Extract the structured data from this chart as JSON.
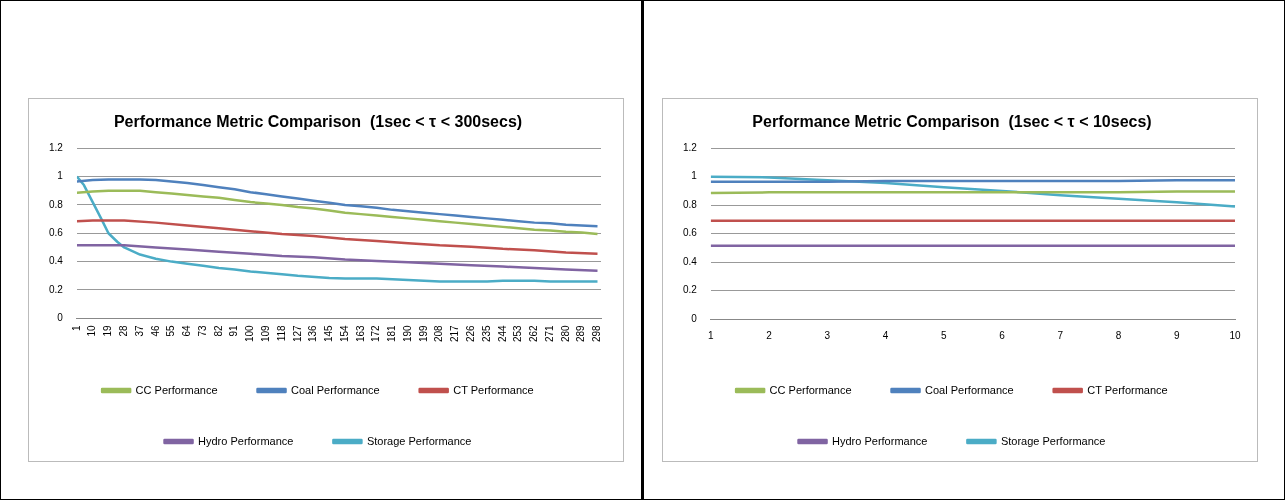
{
  "chart_data": [
    {
      "type": "line",
      "title": "Performance Metric Comparison  (1sec < τ < 300secs)",
      "xlim": [
        1,
        300
      ],
      "xticks": [
        1,
        10,
        19,
        28,
        37,
        46,
        55,
        64,
        73,
        82,
        91,
        100,
        109,
        118,
        127,
        136,
        145,
        154,
        163,
        172,
        181,
        190,
        199,
        208,
        217,
        226,
        235,
        244,
        253,
        262,
        271,
        280,
        289,
        298
      ],
      "ylim": [
        0,
        1.2
      ],
      "yticks": [
        0,
        0.2,
        0.4,
        0.6,
        0.8,
        1,
        1.2
      ],
      "grid": "y",
      "legend": "bottom",
      "marker": "none",
      "line_style": "solid",
      "series": [
        {
          "name": "CC Performance",
          "color": "#9bbb59",
          "x": [
            1,
            10,
            19,
            37,
            46,
            55,
            64,
            73,
            82,
            91,
            100,
            109,
            118,
            127,
            136,
            145,
            154,
            163,
            172,
            181,
            190,
            199,
            208,
            217,
            226,
            235,
            244,
            253,
            262,
            271,
            280,
            289,
            298
          ],
          "values": [
            0.885,
            0.895,
            0.9,
            0.9,
            0.89,
            0.88,
            0.87,
            0.86,
            0.85,
            0.835,
            0.82,
            0.81,
            0.8,
            0.785,
            0.775,
            0.76,
            0.745,
            0.735,
            0.725,
            0.715,
            0.705,
            0.695,
            0.685,
            0.675,
            0.665,
            0.655,
            0.645,
            0.635,
            0.625,
            0.62,
            0.61,
            0.605,
            0.595
          ]
        },
        {
          "name": "Coal Performance",
          "color": "#4f81bd",
          "x": [
            1,
            10,
            19,
            37,
            46,
            55,
            64,
            73,
            82,
            91,
            100,
            109,
            118,
            127,
            136,
            145,
            154,
            163,
            172,
            181,
            190,
            199,
            208,
            217,
            226,
            235,
            244,
            253,
            262,
            271,
            280,
            289,
            298
          ],
          "values": [
            0.965,
            0.975,
            0.98,
            0.98,
            0.975,
            0.965,
            0.955,
            0.94,
            0.925,
            0.91,
            0.89,
            0.875,
            0.86,
            0.845,
            0.83,
            0.815,
            0.8,
            0.79,
            0.78,
            0.765,
            0.755,
            0.745,
            0.735,
            0.725,
            0.715,
            0.705,
            0.695,
            0.685,
            0.675,
            0.67,
            0.66,
            0.655,
            0.65
          ]
        },
        {
          "name": "CT Performance",
          "color": "#c0504d",
          "x": [
            1,
            10,
            28,
            46,
            64,
            82,
            100,
            118,
            136,
            154,
            172,
            190,
            208,
            226,
            244,
            262,
            280,
            298
          ],
          "values": [
            0.685,
            0.69,
            0.69,
            0.675,
            0.655,
            0.635,
            0.615,
            0.595,
            0.58,
            0.56,
            0.545,
            0.53,
            0.515,
            0.505,
            0.49,
            0.48,
            0.465,
            0.455
          ]
        },
        {
          "name": "Hydro Performance",
          "color": "#8064a2",
          "x": [
            1,
            28,
            46,
            64,
            82,
            100,
            118,
            136,
            154,
            172,
            190,
            208,
            226,
            244,
            262,
            280,
            298
          ],
          "values": [
            0.515,
            0.515,
            0.5,
            0.485,
            0.47,
            0.455,
            0.44,
            0.43,
            0.415,
            0.405,
            0.395,
            0.385,
            0.375,
            0.365,
            0.355,
            0.345,
            0.335
          ]
        },
        {
          "name": "Storage Performance",
          "color": "#4bacc6",
          "x": [
            1,
            5,
            10,
            15,
            19,
            24,
            28,
            37,
            46,
            55,
            64,
            73,
            82,
            91,
            100,
            118,
            127,
            145,
            154,
            172,
            190,
            208,
            235,
            244,
            262,
            271,
            298
          ],
          "values": [
            1.0,
            0.94,
            0.82,
            0.7,
            0.6,
            0.54,
            0.5,
            0.45,
            0.42,
            0.4,
            0.385,
            0.37,
            0.355,
            0.345,
            0.33,
            0.31,
            0.3,
            0.285,
            0.28,
            0.28,
            0.27,
            0.26,
            0.26,
            0.265,
            0.265,
            0.26,
            0.26
          ]
        }
      ]
    },
    {
      "type": "line",
      "title": "Performance Metric Comparison  (1sec < τ < 10secs)",
      "categories": [
        "1",
        "2",
        "3",
        "4",
        "5",
        "6",
        "7",
        "8",
        "9",
        "10"
      ],
      "ylim": [
        0,
        1.2
      ],
      "yticks": [
        0,
        0.2,
        0.4,
        0.6,
        0.8,
        1,
        1.2
      ],
      "grid": "y",
      "legend": "bottom",
      "marker": "none",
      "line_style": "solid",
      "series": [
        {
          "name": "CC Performance",
          "color": "#9bbb59",
          "values": [
            0.885,
            0.89,
            0.89,
            0.89,
            0.89,
            0.89,
            0.89,
            0.89,
            0.895,
            0.895
          ]
        },
        {
          "name": "Coal Performance",
          "color": "#4f81bd",
          "values": [
            0.965,
            0.965,
            0.965,
            0.97,
            0.97,
            0.97,
            0.97,
            0.97,
            0.975,
            0.975
          ]
        },
        {
          "name": "CT Performance",
          "color": "#c0504d",
          "values": [
            0.69,
            0.69,
            0.69,
            0.69,
            0.69,
            0.69,
            0.69,
            0.69,
            0.69,
            0.69
          ]
        },
        {
          "name": "Hydro Performance",
          "color": "#8064a2",
          "values": [
            0.515,
            0.515,
            0.515,
            0.515,
            0.515,
            0.515,
            0.515,
            0.515,
            0.515,
            0.515
          ]
        },
        {
          "name": "Storage Performance",
          "color": "#4bacc6",
          "values": [
            1.0,
            0.995,
            0.975,
            0.955,
            0.925,
            0.9,
            0.87,
            0.845,
            0.82,
            0.79
          ]
        }
      ]
    }
  ]
}
